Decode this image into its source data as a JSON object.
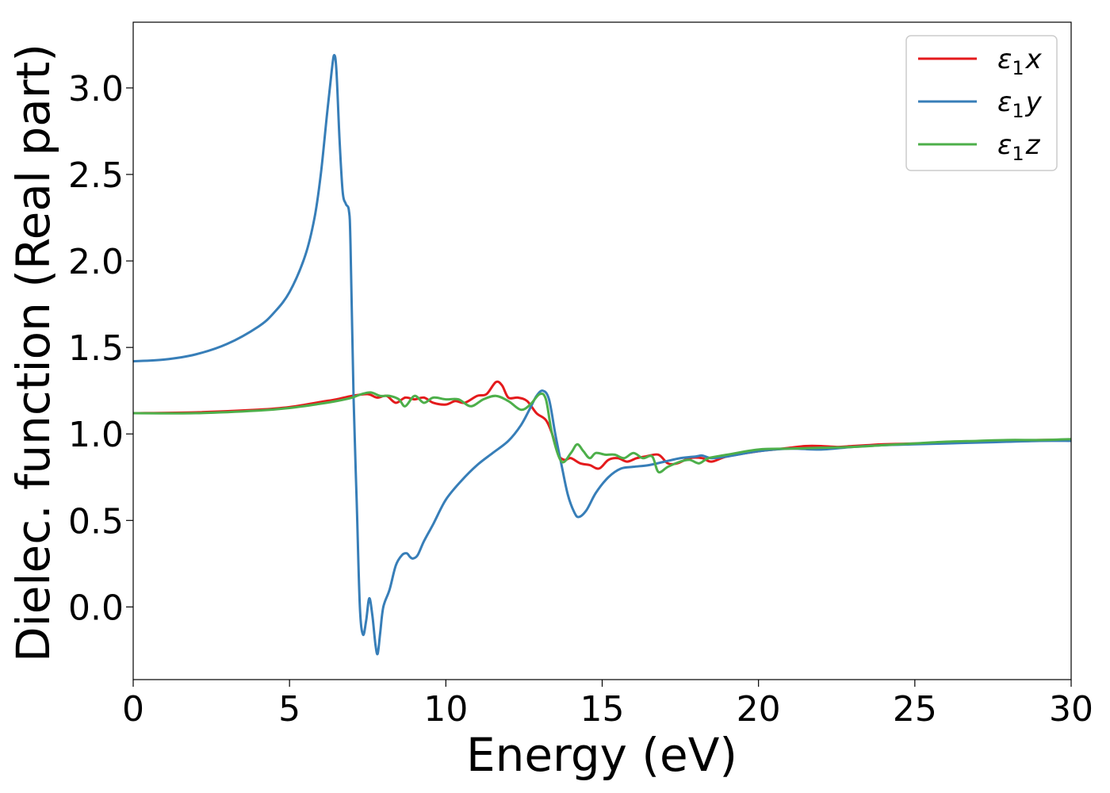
{
  "chart_data": {
    "type": "line",
    "title": "",
    "xlabel": "Energy (eV)",
    "ylabel": "Dielec. function (Real part)",
    "xlim": [
      0,
      30
    ],
    "ylim": [
      -0.42,
      3.38
    ],
    "x_ticks": [
      "0",
      "5",
      "10",
      "15",
      "20",
      "25",
      "30"
    ],
    "y_ticks": [
      "0.0",
      "0.5",
      "1.0",
      "1.5",
      "2.0",
      "2.5",
      "3.0"
    ],
    "grid": false,
    "legend": {
      "placement": "top-right"
    },
    "series": [
      {
        "name": "ε1x",
        "legend_main": "ε",
        "legend_sub": "1",
        "legend_var": "x",
        "color": "#e41a1c",
        "points": [
          [
            0,
            1.12
          ],
          [
            2,
            1.125
          ],
          [
            4,
            1.14
          ],
          [
            5,
            1.155
          ],
          [
            6,
            1.185
          ],
          [
            6.5,
            1.2
          ],
          [
            7,
            1.22
          ],
          [
            7.5,
            1.23
          ],
          [
            7.8,
            1.21
          ],
          [
            8.1,
            1.22
          ],
          [
            8.4,
            1.18
          ],
          [
            8.7,
            1.21
          ],
          [
            9,
            1.2
          ],
          [
            9.3,
            1.21
          ],
          [
            9.6,
            1.18
          ],
          [
            10,
            1.17
          ],
          [
            10.3,
            1.19
          ],
          [
            10.6,
            1.18
          ],
          [
            11,
            1.22
          ],
          [
            11.3,
            1.23
          ],
          [
            11.6,
            1.3
          ],
          [
            11.8,
            1.28
          ],
          [
            12,
            1.21
          ],
          [
            12.3,
            1.21
          ],
          [
            12.6,
            1.19
          ],
          [
            12.9,
            1.12
          ],
          [
            13.2,
            1.08
          ],
          [
            13.4,
            1.0
          ],
          [
            13.6,
            0.88
          ],
          [
            13.8,
            0.85
          ],
          [
            14,
            0.86
          ],
          [
            14.3,
            0.83
          ],
          [
            14.6,
            0.82
          ],
          [
            14.9,
            0.8
          ],
          [
            15.2,
            0.85
          ],
          [
            15.5,
            0.86
          ],
          [
            15.8,
            0.84
          ],
          [
            16.1,
            0.86
          ],
          [
            16.4,
            0.87
          ],
          [
            16.8,
            0.88
          ],
          [
            17.1,
            0.83
          ],
          [
            17.4,
            0.83
          ],
          [
            17.8,
            0.86
          ],
          [
            18.2,
            0.86
          ],
          [
            18.5,
            0.84
          ],
          [
            19,
            0.87
          ],
          [
            20,
            0.9
          ],
          [
            20.5,
            0.91
          ],
          [
            21,
            0.92
          ],
          [
            21.5,
            0.93
          ],
          [
            22,
            0.93
          ],
          [
            22.5,
            0.925
          ],
          [
            23,
            0.93
          ],
          [
            23.5,
            0.935
          ],
          [
            24,
            0.94
          ],
          [
            25,
            0.945
          ],
          [
            26,
            0.95
          ],
          [
            27,
            0.955
          ],
          [
            28,
            0.96
          ],
          [
            29,
            0.965
          ],
          [
            30,
            0.965
          ]
        ]
      },
      {
        "name": "ε1y",
        "legend_main": "ε",
        "legend_sub": "1",
        "legend_var": "y",
        "color": "#377eb8",
        "points": [
          [
            0,
            1.42
          ],
          [
            1,
            1.43
          ],
          [
            2,
            1.46
          ],
          [
            3,
            1.52
          ],
          [
            4,
            1.62
          ],
          [
            4.5,
            1.7
          ],
          [
            5,
            1.82
          ],
          [
            5.5,
            2.03
          ],
          [
            5.8,
            2.25
          ],
          [
            6.0,
            2.5
          ],
          [
            6.2,
            2.85
          ],
          [
            6.35,
            3.1
          ],
          [
            6.43,
            3.19
          ],
          [
            6.5,
            3.1
          ],
          [
            6.6,
            2.7
          ],
          [
            6.7,
            2.4
          ],
          [
            6.8,
            2.33
          ],
          [
            6.9,
            2.29
          ],
          [
            6.95,
            2.1
          ],
          [
            7.05,
            1.2
          ],
          [
            7.15,
            0.6
          ],
          [
            7.25,
            0.0
          ],
          [
            7.35,
            -0.16
          ],
          [
            7.45,
            -0.08
          ],
          [
            7.55,
            0.05
          ],
          [
            7.65,
            -0.05
          ],
          [
            7.75,
            -0.22
          ],
          [
            7.82,
            -0.27
          ],
          [
            7.9,
            -0.15
          ],
          [
            8,
            0.0
          ],
          [
            8.2,
            0.1
          ],
          [
            8.4,
            0.24
          ],
          [
            8.6,
            0.3
          ],
          [
            8.75,
            0.31
          ],
          [
            8.85,
            0.29
          ],
          [
            8.95,
            0.28
          ],
          [
            9.1,
            0.3
          ],
          [
            9.3,
            0.38
          ],
          [
            9.6,
            0.48
          ],
          [
            10,
            0.62
          ],
          [
            10.5,
            0.73
          ],
          [
            11,
            0.82
          ],
          [
            11.5,
            0.89
          ],
          [
            12,
            0.96
          ],
          [
            12.4,
            1.05
          ],
          [
            12.7,
            1.15
          ],
          [
            12.9,
            1.22
          ],
          [
            13.1,
            1.25
          ],
          [
            13.3,
            1.2
          ],
          [
            13.5,
            1.0
          ],
          [
            13.7,
            0.82
          ],
          [
            13.9,
            0.65
          ],
          [
            14.1,
            0.55
          ],
          [
            14.25,
            0.52
          ],
          [
            14.5,
            0.56
          ],
          [
            14.8,
            0.66
          ],
          [
            15.2,
            0.75
          ],
          [
            15.6,
            0.8
          ],
          [
            16,
            0.81
          ],
          [
            16.5,
            0.82
          ],
          [
            17,
            0.84
          ],
          [
            17.5,
            0.86
          ],
          [
            18,
            0.87
          ],
          [
            18.2,
            0.875
          ],
          [
            18.5,
            0.86
          ],
          [
            19,
            0.87
          ],
          [
            20,
            0.9
          ],
          [
            21,
            0.915
          ],
          [
            22,
            0.91
          ],
          [
            23,
            0.925
          ],
          [
            24,
            0.935
          ],
          [
            25,
            0.94
          ],
          [
            26,
            0.945
          ],
          [
            27,
            0.95
          ],
          [
            28,
            0.955
          ],
          [
            29,
            0.96
          ],
          [
            30,
            0.96
          ]
        ]
      },
      {
        "name": "ε1z",
        "legend_main": "ε",
        "legend_sub": "1",
        "legend_var": "z",
        "color": "#4daf4a",
        "points": [
          [
            0,
            1.12
          ],
          [
            2,
            1.12
          ],
          [
            4,
            1.135
          ],
          [
            5,
            1.15
          ],
          [
            6,
            1.175
          ],
          [
            6.5,
            1.19
          ],
          [
            7,
            1.21
          ],
          [
            7.3,
            1.23
          ],
          [
            7.6,
            1.24
          ],
          [
            7.9,
            1.22
          ],
          [
            8.2,
            1.22
          ],
          [
            8.5,
            1.2
          ],
          [
            8.7,
            1.16
          ],
          [
            9,
            1.22
          ],
          [
            9.3,
            1.18
          ],
          [
            9.6,
            1.21
          ],
          [
            10,
            1.2
          ],
          [
            10.4,
            1.2
          ],
          [
            10.8,
            1.16
          ],
          [
            11.2,
            1.2
          ],
          [
            11.6,
            1.22
          ],
          [
            12,
            1.19
          ],
          [
            12.4,
            1.14
          ],
          [
            12.7,
            1.17
          ],
          [
            13,
            1.23
          ],
          [
            13.2,
            1.2
          ],
          [
            13.4,
            1.0
          ],
          [
            13.7,
            0.84
          ],
          [
            14,
            0.89
          ],
          [
            14.2,
            0.94
          ],
          [
            14.4,
            0.9
          ],
          [
            14.6,
            0.86
          ],
          [
            14.8,
            0.89
          ],
          [
            15.1,
            0.88
          ],
          [
            15.4,
            0.88
          ],
          [
            15.7,
            0.86
          ],
          [
            16,
            0.89
          ],
          [
            16.3,
            0.86
          ],
          [
            16.6,
            0.87
          ],
          [
            16.8,
            0.78
          ],
          [
            17.1,
            0.81
          ],
          [
            17.5,
            0.84
          ],
          [
            17.8,
            0.85
          ],
          [
            18.1,
            0.83
          ],
          [
            18.4,
            0.86
          ],
          [
            19,
            0.88
          ],
          [
            20,
            0.91
          ],
          [
            21,
            0.915
          ],
          [
            22,
            0.92
          ],
          [
            23,
            0.925
          ],
          [
            24,
            0.935
          ],
          [
            25,
            0.945
          ],
          [
            26,
            0.955
          ],
          [
            27,
            0.96
          ],
          [
            28,
            0.965
          ],
          [
            29,
            0.965
          ],
          [
            30,
            0.97
          ]
        ]
      }
    ]
  }
}
